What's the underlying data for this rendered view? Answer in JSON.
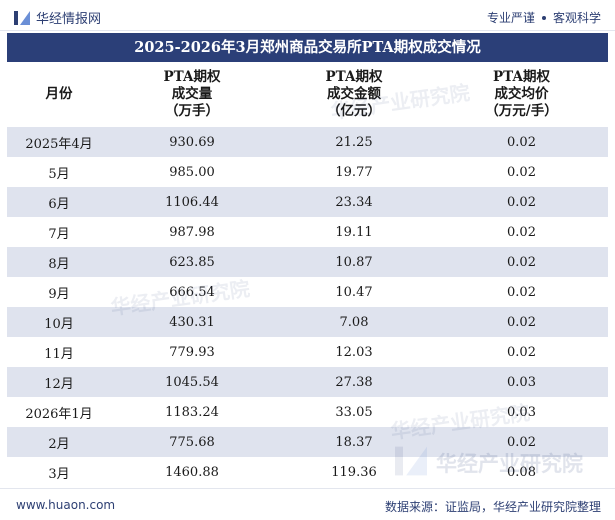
{
  "header": {
    "brand": "华经情报网",
    "slogan_left": "专业严谨",
    "slogan_right": "客观科学"
  },
  "title": "2025-2026年3月郑州商品交易所PTA期权成交情况",
  "table": {
    "columns": [
      {
        "line1": "月份"
      },
      {
        "line1": "PTA期权",
        "line2": "成交量",
        "line3": "（万手）"
      },
      {
        "line1": "PTA期权",
        "line2": "成交金额",
        "line3": "（亿元）"
      },
      {
        "line1": "PTA期权",
        "line2": "成交均价",
        "line3": "（万元/手）"
      }
    ],
    "rows": [
      {
        "month": "2025年4月",
        "volume": "930.69",
        "amount": "21.25",
        "price": "0.02"
      },
      {
        "month": "5月",
        "volume": "985.00",
        "amount": "19.77",
        "price": "0.02"
      },
      {
        "month": "6月",
        "volume": "1106.44",
        "amount": "23.34",
        "price": "0.02"
      },
      {
        "month": "7月",
        "volume": "987.98",
        "amount": "19.11",
        "price": "0.02"
      },
      {
        "month": "8月",
        "volume": "623.85",
        "amount": "10.87",
        "price": "0.02"
      },
      {
        "month": "9月",
        "volume": "666.54",
        "amount": "10.47",
        "price": "0.02"
      },
      {
        "month": "10月",
        "volume": "430.31",
        "amount": "7.08",
        "price": "0.02"
      },
      {
        "month": "11月",
        "volume": "779.93",
        "amount": "12.03",
        "price": "0.02"
      },
      {
        "month": "12月",
        "volume": "1045.54",
        "amount": "27.38",
        "price": "0.03"
      },
      {
        "month": "2026年1月",
        "volume": "1183.24",
        "amount": "33.05",
        "price": "0.03"
      },
      {
        "month": "2月",
        "volume": "775.68",
        "amount": "18.37",
        "price": "0.02"
      },
      {
        "month": "3月",
        "volume": "1460.88",
        "amount": "119.36",
        "price": "0.08"
      }
    ]
  },
  "watermark": {
    "text": "华经产业研究院"
  },
  "footer": {
    "url": "www.huaon.com",
    "source": "数据来源：证监局，华经产业研究院整理"
  },
  "colors": {
    "title_bg": "#2b3f78",
    "stripe": "#dfe3ee",
    "brand": "#2d3f73"
  }
}
